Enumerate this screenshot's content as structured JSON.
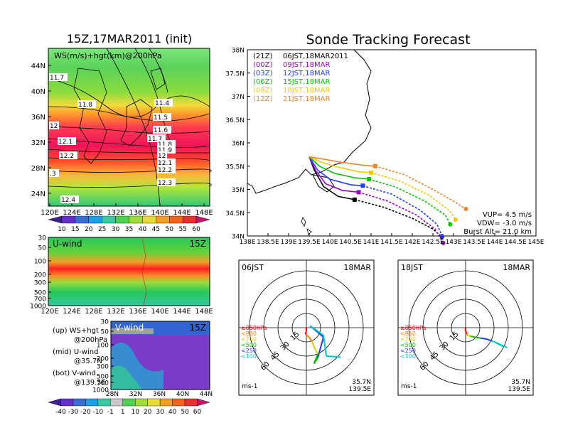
{
  "page": {
    "left_title": "15Z,17MAR2011 (init)",
    "right_title": "Sonde Tracking Forecast"
  },
  "colorbar": {
    "top_ticks": [
      "10",
      "15",
      "20",
      "25",
      "30",
      "35",
      "40",
      "45",
      "50",
      "55",
      "60"
    ],
    "bottom_ticks": [
      "-40",
      "-30",
      "-20",
      "-10",
      "-1",
      "1",
      "10",
      "20",
      "30",
      "40",
      "50",
      "60"
    ]
  },
  "map_panel": {
    "label": "WS(m/s)+hgt(km)@200hPa",
    "xticks": [
      "120E",
      "124E",
      "128E",
      "132E",
      "136E",
      "140E",
      "144E",
      "148E"
    ],
    "yticks": [
      "24N",
      "28N",
      "32N",
      "36N",
      "40N",
      "44N"
    ],
    "contour_labels": [
      "11.7",
      "11.8",
      "11.4",
      "11.5",
      "11.6",
      "11.7",
      "11.8",
      "11.9",
      "12",
      "12",
      "12.1",
      "12.1",
      "12.2",
      "12.2",
      "12.3",
      "12.4",
      ".3"
    ]
  },
  "u_panel": {
    "label": "U-wind",
    "time": "15Z",
    "yticks": [
      "30",
      "50",
      "100",
      "200",
      "300",
      "500",
      "700",
      "1000"
    ],
    "xticks": [
      "120E",
      "124E",
      "128E",
      "132E",
      "136E",
      "140E",
      "144E",
      "148E"
    ]
  },
  "v_panel": {
    "label": "V-wind",
    "time": "15Z",
    "yticks": [
      "30",
      "50",
      "100",
      "200",
      "300",
      "500",
      "700",
      "1000"
    ],
    "xticks": [
      "28N",
      "32N",
      "36N",
      "40N",
      "44N"
    ]
  },
  "notes": [
    {
      "line1": "(up) WS+hgt",
      "line2": "@200hPa"
    },
    {
      "line1": "(mid) U-wind",
      "line2": "@35.7N"
    },
    {
      "line1": "(bot) V-wind",
      "line2": "@139.5E"
    }
  ],
  "track_map": {
    "legend": [
      {
        "utc": "(21Z)",
        "jst": "06JST,18MAR2011",
        "color": "#000000"
      },
      {
        "utc": "(00Z)",
        "jst": "09JST,18MAR",
        "color": "#a000c8"
      },
      {
        "utc": "(03Z)",
        "jst": "12JST,18MAR",
        "color": "#1e3cff"
      },
      {
        "utc": "(06Z)",
        "jst": "15JST,18MAR",
        "color": "#00c800"
      },
      {
        "utc": "(09Z)",
        "jst": "18JST,18MAR",
        "color": "#f0c800"
      },
      {
        "utc": "(12Z)",
        "jst": "21JST,18MAR",
        "color": "#f08228"
      }
    ],
    "xticks": [
      "138E",
      "138.5E",
      "139E",
      "139.5E",
      "140E",
      "140.5E",
      "141E",
      "141.5E",
      "142E",
      "142.5E",
      "143E",
      "143.5E",
      "144E",
      "144.5E",
      "145E"
    ],
    "yticks": [
      "34N",
      "34.5N",
      "35N",
      "35.5N",
      "36N",
      "36.5N",
      "37N",
      "37.5N",
      "38N"
    ],
    "info": {
      "vup": "VUP= 4.5 m/s",
      "vdw": "VDW= -3.0 m/s",
      "burst": "Burst Alt= 21.0 km"
    }
  },
  "chart_data": {
    "type": "line",
    "title": "Sonde Tracking Forecast",
    "xlim": [
      138,
      145
    ],
    "ylim": [
      34,
      38
    ],
    "series": [
      {
        "name": "(21Z) 06JST,18MAR2011",
        "color": "#000000",
        "launch": [
          139.5,
          35.7
        ],
        "ascent": [
          [
            139.5,
            35.7
          ],
          [
            139.62,
            35.42
          ],
          [
            139.85,
            35.06
          ],
          [
            140.2,
            34.85
          ],
          [
            140.6,
            34.78
          ]
        ],
        "burst": [
          140.6,
          34.78
        ],
        "descent": [
          [
            140.6,
            34.78
          ],
          [
            141.3,
            34.62
          ],
          [
            142.0,
            34.38
          ],
          [
            142.5,
            34.15
          ],
          [
            142.72,
            33.98
          ]
        ]
      },
      {
        "name": "(00Z) 09JST,18MAR",
        "color": "#a000c8",
        "launch": [
          139.5,
          35.7
        ],
        "ascent": [
          [
            139.5,
            35.7
          ],
          [
            139.66,
            35.4
          ],
          [
            139.9,
            35.12
          ],
          [
            140.3,
            34.98
          ],
          [
            140.7,
            34.94
          ]
        ],
        "burst": [
          140.7,
          34.94
        ],
        "descent": [
          [
            140.7,
            34.94
          ],
          [
            141.4,
            34.75
          ],
          [
            142.1,
            34.45
          ],
          [
            142.55,
            34.15
          ],
          [
            142.75,
            33.85
          ]
        ]
      },
      {
        "name": "(03Z) 12JST,18MAR",
        "color": "#1e3cff",
        "launch": [
          139.5,
          35.7
        ],
        "ascent": [
          [
            139.5,
            35.7
          ],
          [
            139.7,
            35.42
          ],
          [
            140.0,
            35.22
          ],
          [
            140.5,
            35.1
          ],
          [
            140.8,
            35.08
          ]
        ],
        "burst": [
          140.8,
          35.08
        ],
        "descent": [
          [
            140.8,
            35.08
          ],
          [
            141.5,
            34.9
          ],
          [
            142.2,
            34.55
          ],
          [
            142.6,
            34.25
          ],
          [
            142.72,
            34.0
          ]
        ]
      },
      {
        "name": "(06Z) 15JST,18MAR",
        "color": "#00c800",
        "launch": [
          139.5,
          35.7
        ],
        "ascent": [
          [
            139.5,
            35.7
          ],
          [
            139.75,
            35.5
          ],
          [
            140.1,
            35.35
          ],
          [
            140.6,
            35.25
          ],
          [
            140.95,
            35.22
          ]
        ],
        "burst": [
          140.95,
          35.22
        ],
        "descent": [
          [
            140.95,
            35.22
          ],
          [
            141.6,
            35.05
          ],
          [
            142.3,
            34.75
          ],
          [
            142.8,
            34.45
          ],
          [
            142.92,
            34.25
          ]
        ]
      },
      {
        "name": "(09Z) 18JST,18MAR",
        "color": "#f0c800",
        "launch": [
          139.5,
          35.7
        ],
        "ascent": [
          [
            139.5,
            35.7
          ],
          [
            139.8,
            35.58
          ],
          [
            140.2,
            35.48
          ],
          [
            140.7,
            35.38
          ],
          [
            141.0,
            35.36
          ]
        ],
        "burst": [
          141.0,
          35.36
        ],
        "descent": [
          [
            141.0,
            35.36
          ],
          [
            141.7,
            35.18
          ],
          [
            142.4,
            34.88
          ],
          [
            142.9,
            34.55
          ],
          [
            143.05,
            34.35
          ]
        ]
      },
      {
        "name": "(12Z) 21JST,18MAR",
        "color": "#f08228",
        "launch": [
          139.5,
          35.7
        ],
        "ascent": [
          [
            139.5,
            35.7
          ],
          [
            139.85,
            35.65
          ],
          [
            140.3,
            35.58
          ],
          [
            140.8,
            35.52
          ],
          [
            141.1,
            35.5
          ]
        ],
        "burst": [
          141.1,
          35.5
        ],
        "descent": [
          [
            141.1,
            35.5
          ],
          [
            141.8,
            35.32
          ],
          [
            142.5,
            35.0
          ],
          [
            143.0,
            34.75
          ],
          [
            143.3,
            34.58
          ]
        ]
      }
    ]
  },
  "hodo_left": {
    "time": "06JST",
    "date": "18MAR",
    "rings": [
      "15",
      "30",
      "45",
      "60"
    ],
    "legend": [
      "≥850hPa",
      "<850",
      "<700",
      "<500",
      "<250",
      "<100"
    ],
    "legend_colors": [
      "#ff0000",
      "#ff7800",
      "#e6c800",
      "#00c800",
      "#1e3cff",
      "#00c8c8"
    ],
    "unit": "ms-1",
    "loc_lat": "35.7N",
    "loc_lon": "139.5E",
    "profile": [
      [
        0,
        -3,
        "#ff0000"
      ],
      [
        -1,
        -7,
        "#ff0000"
      ],
      [
        3,
        -10,
        "#ff7800"
      ],
      [
        6,
        -15,
        "#ff7800"
      ],
      [
        9,
        -22,
        "#e6c800"
      ],
      [
        12,
        -28,
        "#e6c800"
      ],
      [
        10,
        -33,
        "#00c800"
      ],
      [
        8,
        -38,
        "#00c800"
      ],
      [
        12,
        -32,
        "#00c800"
      ],
      [
        18,
        -10,
        "#1e3cff"
      ],
      [
        11,
        -4,
        "#1e3cff"
      ],
      [
        4,
        2,
        "#1e3cff"
      ],
      [
        18,
        -8,
        "#00c8c8"
      ],
      [
        21,
        -30,
        "#00c8c8"
      ],
      [
        36,
        -31,
        "#00c8c8"
      ]
    ]
  },
  "hodo_right": {
    "time": "18JST",
    "date": "18MAR",
    "rings": [
      "15",
      "30",
      "45",
      "60"
    ],
    "legend": [
      "≥850hPa",
      "<850",
      "<700",
      "<500",
      "<250",
      "<100"
    ],
    "legend_colors": [
      "#ff0000",
      "#ff7800",
      "#e6c800",
      "#00c800",
      "#1e3cff",
      "#00c8c8"
    ],
    "unit": "ms-1",
    "loc_lat": "35.7N",
    "loc_lon": "139.5E",
    "profile": [
      [
        0,
        -3,
        "#ff0000"
      ],
      [
        1,
        -6,
        "#ff0000"
      ],
      [
        2,
        -8,
        "#ff7800"
      ],
      [
        5,
        -9,
        "#e6c800"
      ],
      [
        10,
        -10,
        "#00c800"
      ],
      [
        16,
        -11,
        "#00c800"
      ],
      [
        22,
        -12,
        "#1e3cff"
      ],
      [
        28,
        -14,
        "#1e3cff"
      ],
      [
        35,
        -17,
        "#00c8c8"
      ],
      [
        40,
        -20,
        "#00c8c8"
      ],
      [
        32,
        -16,
        "#00c8c8"
      ],
      [
        44,
        -21,
        "#00c8c8"
      ]
    ]
  }
}
